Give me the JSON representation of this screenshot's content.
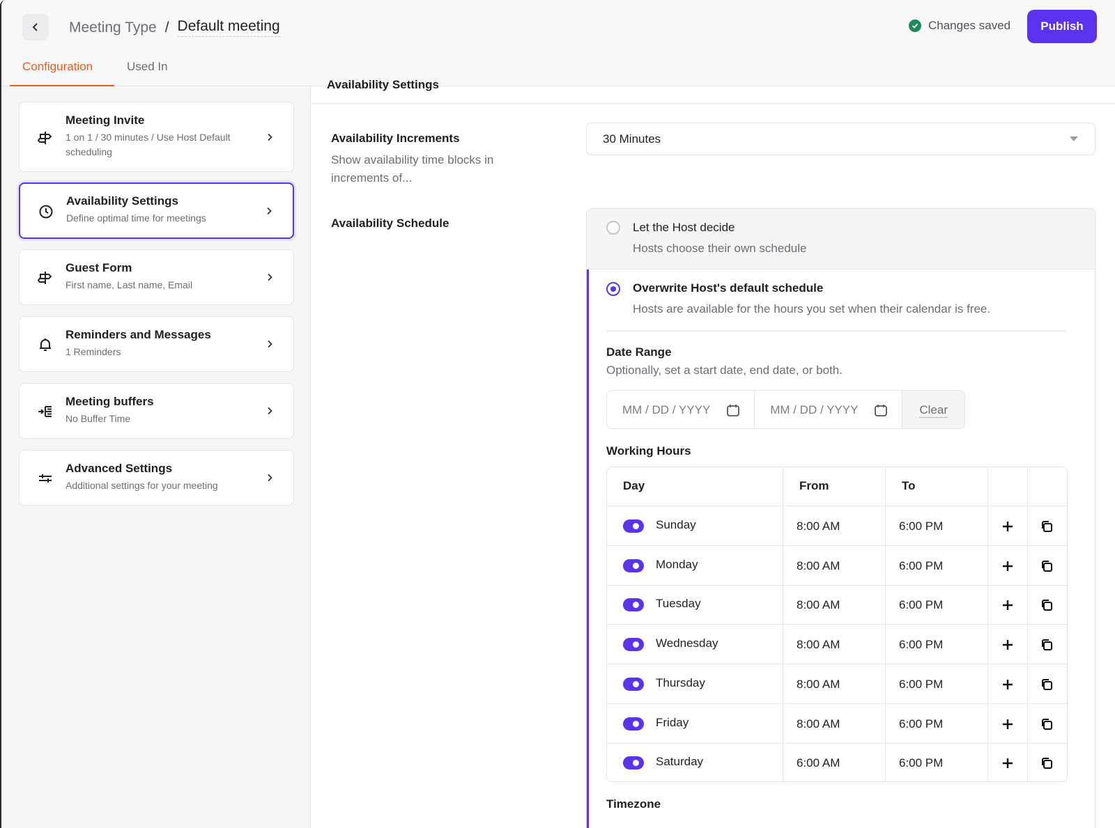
{
  "header": {
    "breadcrumb_parent": "Meeting Type",
    "breadcrumb_separator": "/",
    "breadcrumb_current": "Default meeting",
    "saved_status": "Changes saved",
    "publish_label": "Publish"
  },
  "tabs": [
    {
      "label": "Configuration",
      "active": true
    },
    {
      "label": "Used In",
      "active": false
    }
  ],
  "sidebar": {
    "cards": [
      {
        "icon": "signpost-icon",
        "title": "Meeting Invite",
        "subtitle": "1 on 1 / 30 minutes / Use Host Default scheduling"
      },
      {
        "icon": "clock-icon",
        "title": "Availability Settings",
        "subtitle": "Define optimal time for meetings"
      },
      {
        "icon": "signpost-icon",
        "title": "Guest Form",
        "subtitle": "First name, Last name, Email"
      },
      {
        "icon": "bell-icon",
        "title": "Reminders and Messages",
        "subtitle": "1 Reminders"
      },
      {
        "icon": "buffer-icon",
        "title": "Meeting buffers",
        "subtitle": "No Buffer Time"
      },
      {
        "icon": "sliders-icon",
        "title": "Advanced Settings",
        "subtitle": "Additional settings for your meeting"
      }
    ]
  },
  "main": {
    "section_title": "Availability Settings",
    "increments": {
      "label": "Availability Increments",
      "description": "Show availability time blocks in increments of...",
      "value": "30 Minutes"
    },
    "schedule": {
      "label": "Availability Schedule",
      "option1_title": "Let the Host decide",
      "option1_desc": "Hosts choose their own schedule",
      "option2_title": "Overwrite Host's default schedule",
      "option2_desc": "Hosts are available for the hours you set when their calendar is free.",
      "selected": "option2"
    },
    "date_range": {
      "title": "Date Range",
      "description": "Optionally, set a start date, end date, or both.",
      "start_placeholder": "MM / DD / YYYY",
      "end_placeholder": "MM / DD / YYYY",
      "clear_label": "Clear"
    },
    "working_hours": {
      "title": "Working Hours",
      "columns": [
        "Day",
        "From",
        "To"
      ],
      "rows": [
        {
          "day": "Sunday",
          "from": "8:00 AM",
          "to": "6:00 PM",
          "enabled": true
        },
        {
          "day": "Monday",
          "from": "8:00 AM",
          "to": "6:00 PM",
          "enabled": true
        },
        {
          "day": "Tuesday",
          "from": "8:00 AM",
          "to": "6:00 PM",
          "enabled": true
        },
        {
          "day": "Wednesday",
          "from": "8:00 AM",
          "to": "6:00 PM",
          "enabled": true
        },
        {
          "day": "Thursday",
          "from": "8:00 AM",
          "to": "6:00 PM",
          "enabled": true
        },
        {
          "day": "Friday",
          "from": "8:00 AM",
          "to": "6:00 PM",
          "enabled": true
        },
        {
          "day": "Saturday",
          "from": "6:00 AM",
          "to": "6:00 PM",
          "enabled": true
        }
      ]
    },
    "timezone_title": "Timezone"
  },
  "colors": {
    "accent": "#5a32f0",
    "tab_active": "#f05a1e",
    "saved_green": "#1c8a5a"
  }
}
